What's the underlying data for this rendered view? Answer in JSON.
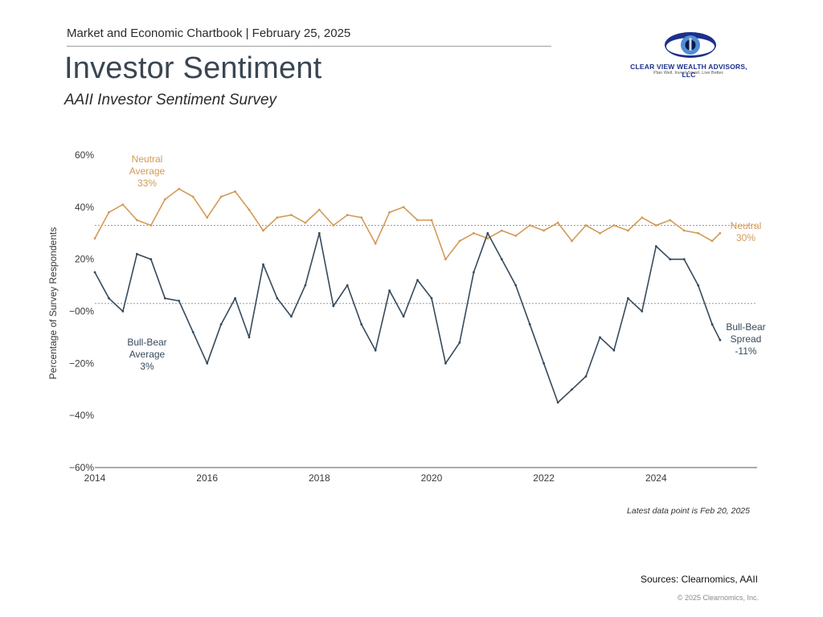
{
  "header": {
    "line": "Market and Economic Chartbook | February 25, 2025",
    "title": "Investor Sentiment",
    "subtitle": "AAII Investor Sentiment Survey"
  },
  "logo": {
    "name": "CLEAR VIEW WEALTH ADVISORS, LLC",
    "tagline": "Plan Well. Invest Smart. Live Better.",
    "colors": {
      "outer": "#1c2f8c",
      "inner": "#4f8fd6",
      "pupil": "#0b1a4a"
    }
  },
  "chart_data": {
    "type": "line",
    "title": "",
    "ylabel": "Percentage of Survey Respondents",
    "xlabel": "",
    "ylim": [
      -60,
      60
    ],
    "xlim": [
      2014.0,
      2025.8
    ],
    "yticks": [
      60,
      40,
      20,
      0,
      -20,
      -40,
      -60
    ],
    "ytick_labels": [
      "60%",
      "40%",
      "20%",
      "−00%",
      "−20%",
      "−40%",
      "−60%"
    ],
    "xticks": [
      2014,
      2016,
      2018,
      2020,
      2022,
      2024
    ],
    "grid": false,
    "colors": {
      "neutral": "#d39a57",
      "spread": "#364a5c",
      "average_line": "#9a9a9a"
    },
    "series": [
      {
        "name": "Neutral",
        "color": "#d39a57",
        "x": [
          2014.0,
          2014.25,
          2014.5,
          2014.75,
          2015.0,
          2015.25,
          2015.5,
          2015.75,
          2016.0,
          2016.25,
          2016.5,
          2016.75,
          2017.0,
          2017.25,
          2017.5,
          2017.75,
          2018.0,
          2018.25,
          2018.5,
          2018.75,
          2019.0,
          2019.25,
          2019.5,
          2019.75,
          2020.0,
          2020.25,
          2020.5,
          2020.75,
          2021.0,
          2021.25,
          2021.5,
          2021.75,
          2022.0,
          2022.25,
          2022.5,
          2022.75,
          2023.0,
          2023.25,
          2023.5,
          2023.75,
          2024.0,
          2024.25,
          2024.5,
          2024.75,
          2025.0,
          2025.14
        ],
        "values": [
          28,
          38,
          41,
          35,
          33,
          43,
          47,
          44,
          36,
          44,
          46,
          39,
          31,
          36,
          37,
          34,
          39,
          33,
          37,
          36,
          26,
          38,
          40,
          35,
          35,
          20,
          27,
          30,
          28,
          31,
          29,
          33,
          31,
          34,
          27,
          33,
          30,
          33,
          31,
          36,
          33,
          35,
          31,
          30,
          27,
          30
        ]
      },
      {
        "name": "Bull-Bear Spread",
        "color": "#364a5c",
        "x": [
          2014.0,
          2014.25,
          2014.5,
          2014.75,
          2015.0,
          2015.25,
          2015.5,
          2015.75,
          2016.0,
          2016.25,
          2016.5,
          2016.75,
          2017.0,
          2017.25,
          2017.5,
          2017.75,
          2018.0,
          2018.25,
          2018.5,
          2018.75,
          2019.0,
          2019.25,
          2019.5,
          2019.75,
          2020.0,
          2020.25,
          2020.5,
          2020.75,
          2021.0,
          2021.25,
          2021.5,
          2021.75,
          2022.0,
          2022.25,
          2022.5,
          2022.75,
          2023.0,
          2023.25,
          2023.5,
          2023.75,
          2024.0,
          2024.25,
          2024.5,
          2024.75,
          2025.0,
          2025.14
        ],
        "values": [
          15,
          5,
          0,
          22,
          20,
          5,
          4,
          -8,
          -20,
          -5,
          5,
          -10,
          18,
          5,
          -2,
          10,
          30,
          2,
          10,
          -5,
          -15,
          8,
          -2,
          12,
          5,
          -20,
          -12,
          15,
          30,
          20,
          10,
          -5,
          -20,
          -35,
          -30,
          -25,
          -10,
          -15,
          5,
          0,
          25,
          20,
          20,
          10,
          -5,
          -11
        ]
      }
    ],
    "averages": [
      {
        "name": "Neutral Average",
        "value": 33
      },
      {
        "name": "Bull-Bear Average",
        "value": 3
      }
    ],
    "annotations": {
      "neutral_avg": [
        "Neutral",
        "Average",
        "33%"
      ],
      "bullbear_avg": [
        "Bull-Bear",
        "Average",
        "3%"
      ],
      "neutral_latest": [
        "Neutral",
        "30%"
      ],
      "spread_latest": [
        "Bull-Bear",
        "Spread",
        "-11%"
      ]
    }
  },
  "footer": {
    "latest": "Latest data point is Feb 20, 2025",
    "sources": "Sources: Clearnomics,  AAII",
    "copyright": "© 2025 Clearnomics, Inc."
  }
}
